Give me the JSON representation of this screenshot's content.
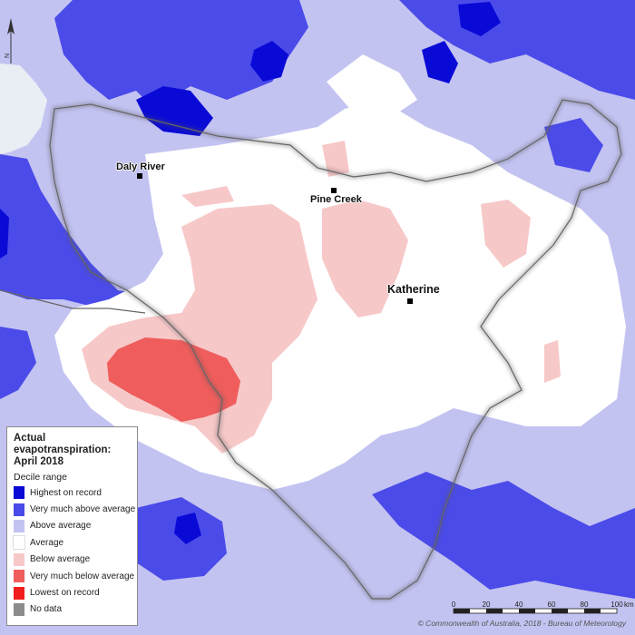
{
  "colors": {
    "highest": "#0a0ad6",
    "very_much_above": "#4b4bea",
    "above": "#c3c3f2",
    "average": "#ffffff",
    "below": "#f7c8c8",
    "very_much_below": "#ef5d5d",
    "lowest": "#f11e1e",
    "no_data": "#8c8c8c",
    "sea": "#e9eef4"
  },
  "legend": {
    "title": "Actual\nevapotranspiration:\nApril 2018",
    "subtitle": "Decile range",
    "items": [
      {
        "label": "Highest on record",
        "color": "#0a0ad6"
      },
      {
        "label": "Very much above average",
        "color": "#4b4bea"
      },
      {
        "label": "Above average",
        "color": "#c3c3f2"
      },
      {
        "label": "Average",
        "color": "#ffffff"
      },
      {
        "label": "Below average",
        "color": "#f7c8c8"
      },
      {
        "label": "Very much below average",
        "color": "#ef5d5d"
      },
      {
        "label": "Lowest on record",
        "color": "#f11e1e"
      },
      {
        "label": "No data",
        "color": "#8c8c8c"
      }
    ]
  },
  "places": [
    {
      "name": "Daly River"
    },
    {
      "name": "Pine Creek"
    },
    {
      "name": "Katherine"
    }
  ],
  "north_arrow": {
    "label": "N"
  },
  "scale_bar": {
    "ticks": [
      "0",
      "20",
      "40",
      "60",
      "80",
      "100"
    ],
    "unit": "km"
  },
  "copyright": "© Commonwealth of Australia, 2018 - Bureau of Meteorology"
}
